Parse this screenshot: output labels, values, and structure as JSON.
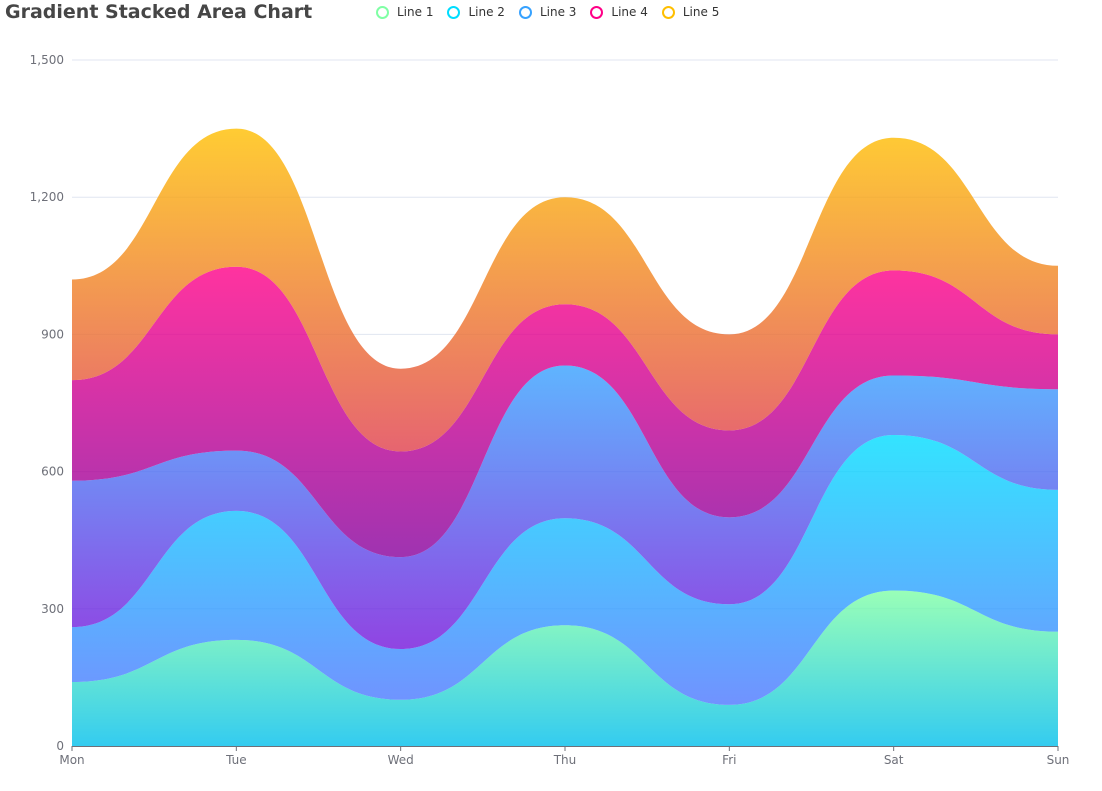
{
  "chart_data": {
    "type": "area",
    "stacked": true,
    "smooth": true,
    "title": "Gradient Stacked Area Chart",
    "categories": [
      "Mon",
      "Tue",
      "Wed",
      "Thu",
      "Fri",
      "Sat",
      "Sun"
    ],
    "ylim": [
      0,
      1500
    ],
    "yticks": [
      0,
      300,
      600,
      900,
      1200,
      1500
    ],
    "ytick_labels": [
      "0",
      "300",
      "600",
      "900",
      "1,200",
      "1,500"
    ],
    "grid": true,
    "legend_position": "top-center",
    "series": [
      {
        "name": "Line 1",
        "values": [
          140,
          232,
          101,
          264,
          90,
          340,
          250
        ],
        "legend_color": "#80FFA5",
        "gradient": [
          "#80FFA5",
          "#01BFEC"
        ]
      },
      {
        "name": "Line 2",
        "values": [
          120,
          282,
          111,
          234,
          220,
          340,
          310
        ],
        "legend_color": "#00DDFF",
        "gradient": [
          "#00DDFF",
          "#4D77FF"
        ]
      },
      {
        "name": "Line 3",
        "values": [
          320,
          132,
          201,
          334,
          190,
          130,
          220
        ],
        "legend_color": "#37A2FF",
        "gradient": [
          "#37A2FF",
          "#7415DB"
        ]
      },
      {
        "name": "Line 4",
        "values": [
          220,
          402,
          231,
          134,
          190,
          230,
          120
        ],
        "legend_color": "#FF0087",
        "gradient": [
          "#FF0087",
          "#87009D"
        ]
      },
      {
        "name": "Line 5",
        "values": [
          220,
          302,
          181,
          234,
          210,
          290,
          150
        ],
        "legend_color": "#FFBF00",
        "gradient": [
          "#FFBF00",
          "#E03E4C"
        ]
      }
    ]
  }
}
